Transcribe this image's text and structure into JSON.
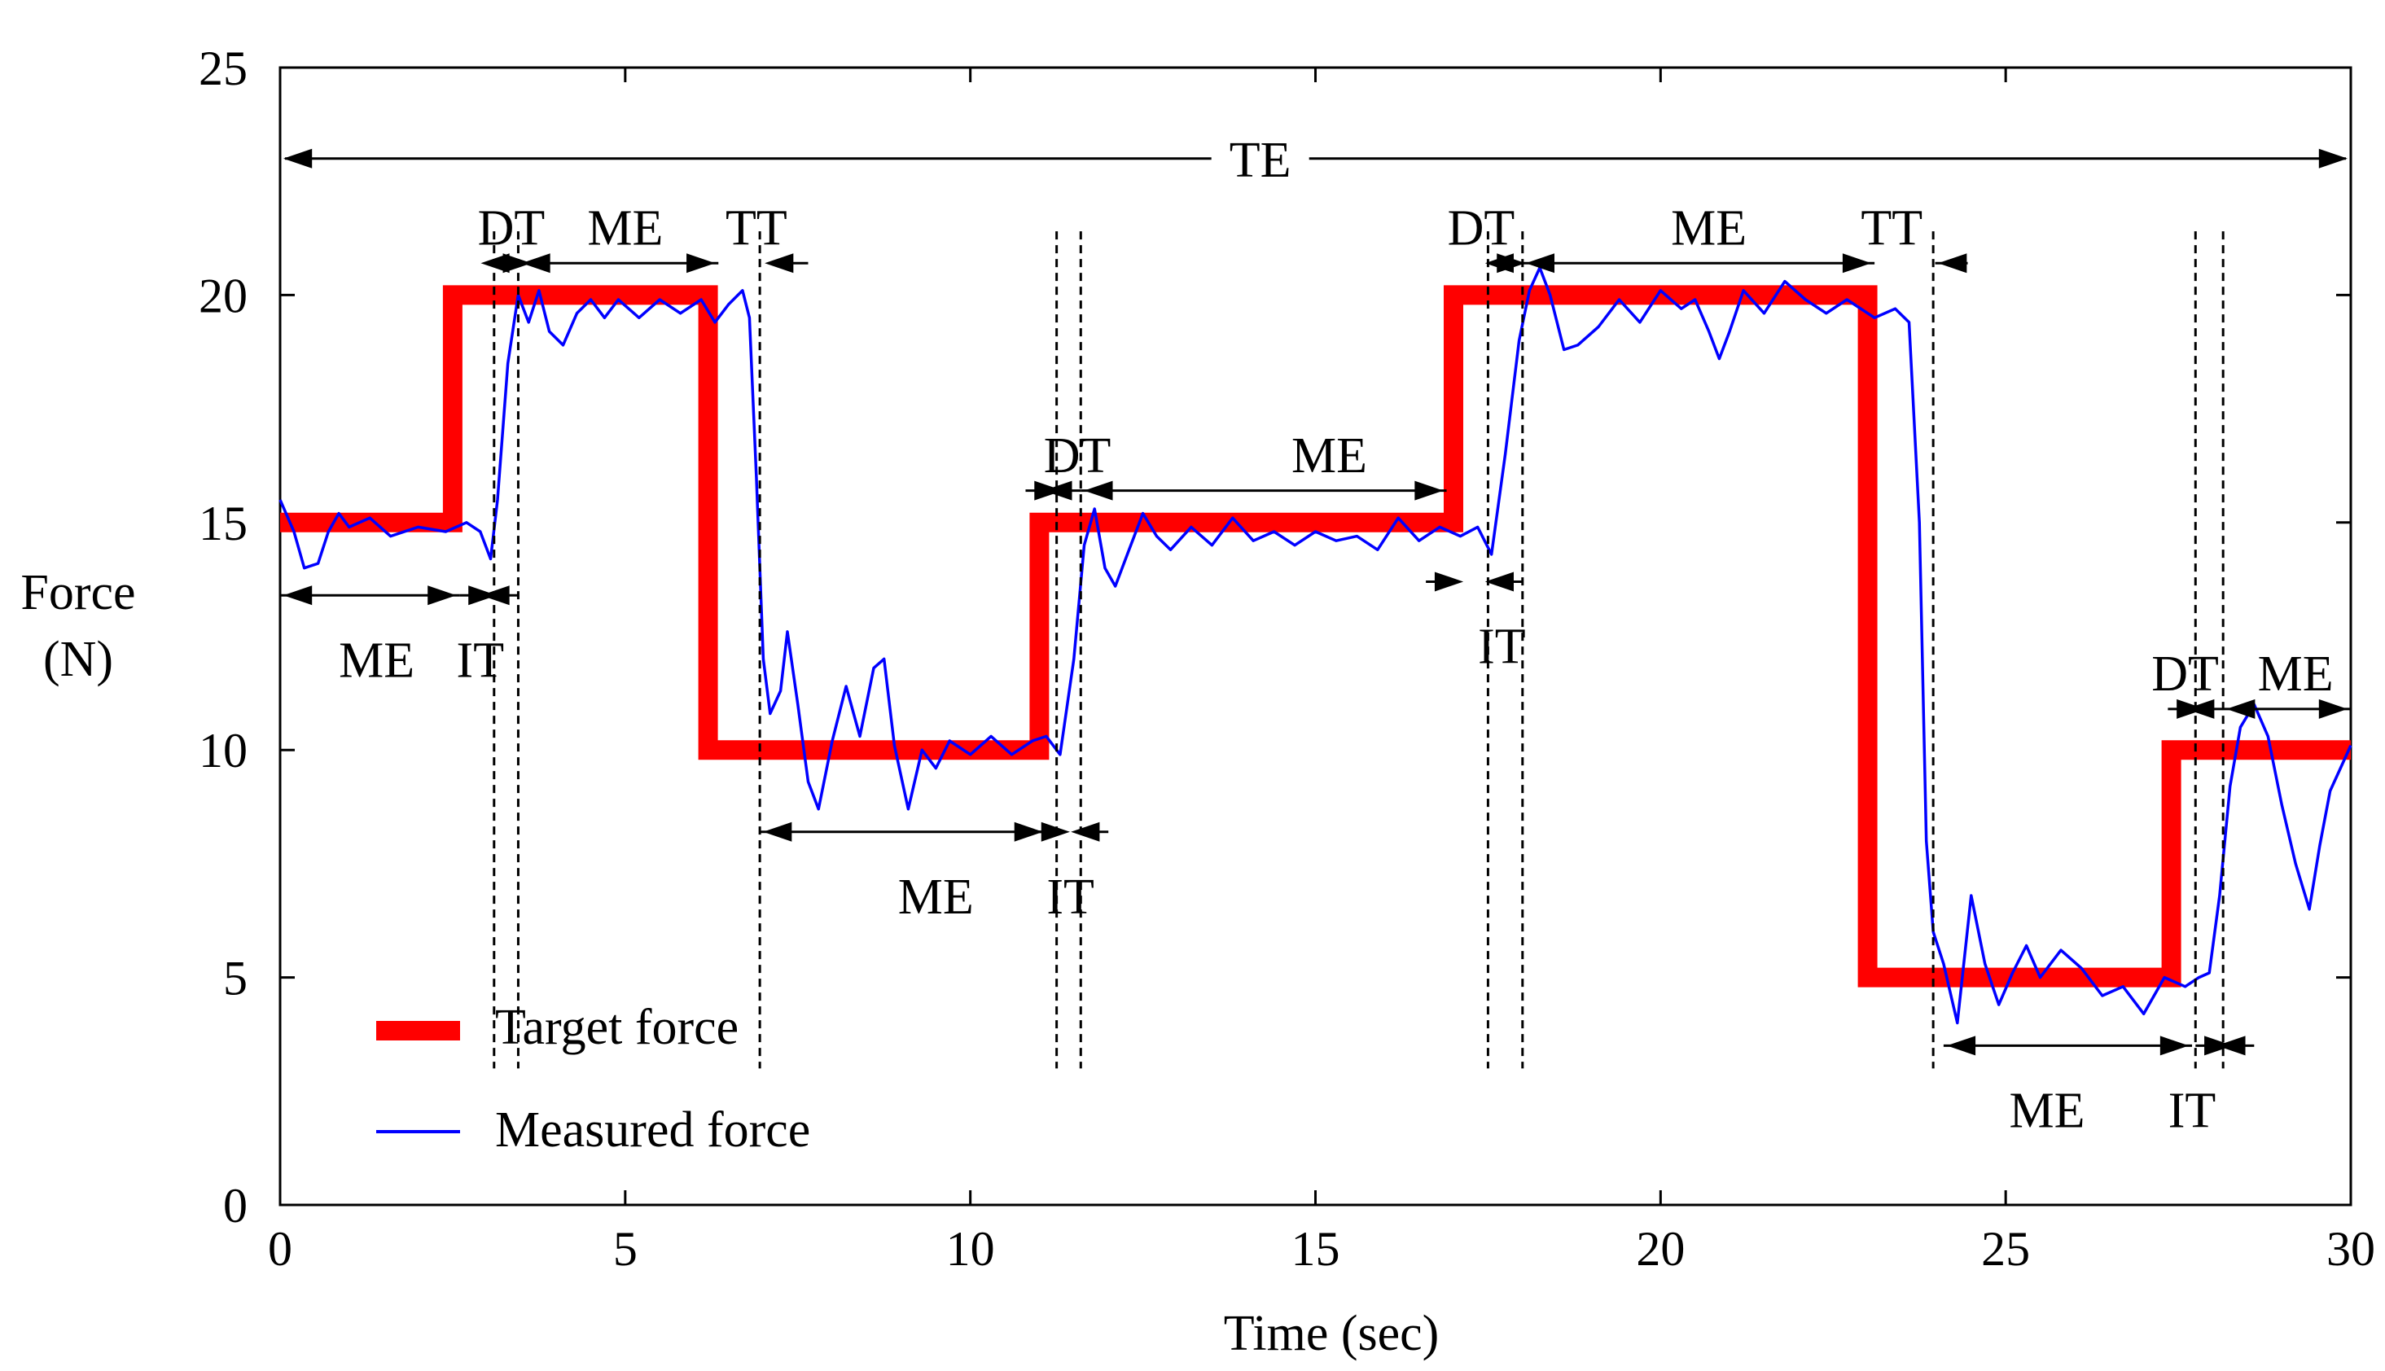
{
  "chart_data": {
    "type": "line",
    "xlabel": "Time (sec)",
    "ylabel_line1": "Force",
    "ylabel_line2": "(N)",
    "xlim": [
      0,
      30
    ],
    "ylim": [
      0,
      25
    ],
    "xticks": [
      0,
      5,
      10,
      15,
      20,
      25,
      30
    ],
    "yticks": [
      0,
      5,
      10,
      15,
      20,
      25
    ],
    "grid": false,
    "legend_position": "bottom-left",
    "series": [
      {
        "name": "Target force",
        "color": "#ff0000",
        "style": "step",
        "points": [
          [
            0,
            15
          ],
          [
            2.5,
            15
          ],
          [
            2.5,
            20
          ],
          [
            6.2,
            20
          ],
          [
            6.2,
            10
          ],
          [
            11,
            10
          ],
          [
            11,
            15
          ],
          [
            17,
            15
          ],
          [
            17,
            20
          ],
          [
            23,
            20
          ],
          [
            23,
            5
          ],
          [
            27.4,
            5
          ],
          [
            27.4,
            10
          ],
          [
            30,
            10
          ]
        ]
      },
      {
        "name": "Measured force",
        "color": "#0000ff",
        "style": "line",
        "points": [
          [
            0,
            15.5
          ],
          [
            0.2,
            14.8
          ],
          [
            0.35,
            14.0
          ],
          [
            0.55,
            14.1
          ],
          [
            0.7,
            14.8
          ],
          [
            0.85,
            15.2
          ],
          [
            1.0,
            14.9
          ],
          [
            1.3,
            15.1
          ],
          [
            1.6,
            14.7
          ],
          [
            2.0,
            14.9
          ],
          [
            2.4,
            14.8
          ],
          [
            2.7,
            15.0
          ],
          [
            2.9,
            14.8
          ],
          [
            3.05,
            14.2
          ],
          [
            3.15,
            15.5
          ],
          [
            3.3,
            18.5
          ],
          [
            3.45,
            20.0
          ],
          [
            3.6,
            19.4
          ],
          [
            3.75,
            20.1
          ],
          [
            3.9,
            19.2
          ],
          [
            4.1,
            18.9
          ],
          [
            4.3,
            19.6
          ],
          [
            4.5,
            19.9
          ],
          [
            4.7,
            19.5
          ],
          [
            4.9,
            19.9
          ],
          [
            5.2,
            19.5
          ],
          [
            5.5,
            19.9
          ],
          [
            5.8,
            19.6
          ],
          [
            6.1,
            19.9
          ],
          [
            6.3,
            19.4
          ],
          [
            6.5,
            19.8
          ],
          [
            6.7,
            20.1
          ],
          [
            6.8,
            19.5
          ],
          [
            6.9,
            16.0
          ],
          [
            7.0,
            12.0
          ],
          [
            7.1,
            10.8
          ],
          [
            7.25,
            11.3
          ],
          [
            7.35,
            12.6
          ],
          [
            7.5,
            11.0
          ],
          [
            7.65,
            9.3
          ],
          [
            7.8,
            8.7
          ],
          [
            8.0,
            10.2
          ],
          [
            8.2,
            11.4
          ],
          [
            8.4,
            10.3
          ],
          [
            8.6,
            11.8
          ],
          [
            8.75,
            12.0
          ],
          [
            8.9,
            10.1
          ],
          [
            9.1,
            8.7
          ],
          [
            9.3,
            10.0
          ],
          [
            9.5,
            9.6
          ],
          [
            9.7,
            10.2
          ],
          [
            10.0,
            9.9
          ],
          [
            10.3,
            10.3
          ],
          [
            10.6,
            9.9
          ],
          [
            10.9,
            10.2
          ],
          [
            11.1,
            10.3
          ],
          [
            11.3,
            9.9
          ],
          [
            11.5,
            12.0
          ],
          [
            11.65,
            14.5
          ],
          [
            11.8,
            15.3
          ],
          [
            11.95,
            14.0
          ],
          [
            12.1,
            13.6
          ],
          [
            12.3,
            14.4
          ],
          [
            12.5,
            15.2
          ],
          [
            12.7,
            14.7
          ],
          [
            12.9,
            14.4
          ],
          [
            13.2,
            14.9
          ],
          [
            13.5,
            14.5
          ],
          [
            13.8,
            15.1
          ],
          [
            14.1,
            14.6
          ],
          [
            14.4,
            14.8
          ],
          [
            14.7,
            14.5
          ],
          [
            15.0,
            14.8
          ],
          [
            15.3,
            14.6
          ],
          [
            15.6,
            14.7
          ],
          [
            15.9,
            14.4
          ],
          [
            16.2,
            15.1
          ],
          [
            16.5,
            14.6
          ],
          [
            16.8,
            14.9
          ],
          [
            17.1,
            14.7
          ],
          [
            17.35,
            14.9
          ],
          [
            17.55,
            14.3
          ],
          [
            17.75,
            16.5
          ],
          [
            17.95,
            19.0
          ],
          [
            18.1,
            20.1
          ],
          [
            18.25,
            20.6
          ],
          [
            18.4,
            20.0
          ],
          [
            18.6,
            18.8
          ],
          [
            18.8,
            18.9
          ],
          [
            19.1,
            19.3
          ],
          [
            19.4,
            19.9
          ],
          [
            19.7,
            19.4
          ],
          [
            20.0,
            20.1
          ],
          [
            20.3,
            19.7
          ],
          [
            20.5,
            19.9
          ],
          [
            20.7,
            19.2
          ],
          [
            20.85,
            18.6
          ],
          [
            21.0,
            19.2
          ],
          [
            21.2,
            20.1
          ],
          [
            21.5,
            19.6
          ],
          [
            21.8,
            20.3
          ],
          [
            22.1,
            19.9
          ],
          [
            22.4,
            19.6
          ],
          [
            22.7,
            19.9
          ],
          [
            23.1,
            19.5
          ],
          [
            23.4,
            19.7
          ],
          [
            23.6,
            19.4
          ],
          [
            23.75,
            15.0
          ],
          [
            23.85,
            8.0
          ],
          [
            23.95,
            6.0
          ],
          [
            24.1,
            5.3
          ],
          [
            24.3,
            4.0
          ],
          [
            24.5,
            6.8
          ],
          [
            24.7,
            5.3
          ],
          [
            24.9,
            4.4
          ],
          [
            25.1,
            5.1
          ],
          [
            25.3,
            5.7
          ],
          [
            25.5,
            5.0
          ],
          [
            25.8,
            5.6
          ],
          [
            26.1,
            5.2
          ],
          [
            26.4,
            4.6
          ],
          [
            26.7,
            4.8
          ],
          [
            27.0,
            4.2
          ],
          [
            27.3,
            5.0
          ],
          [
            27.6,
            4.8
          ],
          [
            27.8,
            5.0
          ],
          [
            27.95,
            5.1
          ],
          [
            28.1,
            6.8
          ],
          [
            28.25,
            9.2
          ],
          [
            28.4,
            10.5
          ],
          [
            28.6,
            11.0
          ],
          [
            28.8,
            10.3
          ],
          [
            29.0,
            8.8
          ],
          [
            29.2,
            7.5
          ],
          [
            29.4,
            6.5
          ],
          [
            29.55,
            7.9
          ],
          [
            29.7,
            9.1
          ],
          [
            29.85,
            9.6
          ],
          [
            30.0,
            10.1
          ]
        ]
      }
    ],
    "vlines": [
      3.1,
      3.45,
      6.95,
      11.25,
      11.6,
      17.5,
      18.0,
      23.95,
      27.75,
      28.15
    ],
    "annotations": [
      {
        "text": "TE",
        "x1": 0,
        "x2": 30,
        "y": 23.0,
        "style": "span",
        "label_x": 14.2,
        "label_y": 23.0
      },
      {
        "text": "DT",
        "x1": 3.1,
        "x2": 3.45,
        "y": 20.7,
        "style": "inward",
        "label_x": 3.35,
        "label_y": 21.5
      },
      {
        "text": "ME",
        "x1": 3.45,
        "x2": 6.35,
        "y": 20.7,
        "style": "span",
        "label_x": 5.0,
        "label_y": 21.5
      },
      {
        "text": "TT",
        "x1": 6.95,
        "x2": 7.65,
        "y": 20.7,
        "style": "left-inward",
        "label_x": 6.9,
        "label_y": 21.5
      },
      {
        "text": "ME",
        "x1": 0,
        "x2": 2.6,
        "y": 13.4,
        "style": "span",
        "label_x": 1.4,
        "label_y": 12.0
      },
      {
        "text": "IT",
        "x1": 2.6,
        "x2": 3.45,
        "y": 13.4,
        "style": "inward",
        "label_x": 2.9,
        "label_y": 12.0
      },
      {
        "text": "DT",
        "x1": 10.8,
        "x2": 11.6,
        "y": 15.7,
        "style": "inward",
        "label_x": 11.55,
        "label_y": 16.5
      },
      {
        "text": "ME",
        "x1": 11.6,
        "x2": 16.9,
        "y": 15.7,
        "style": "span",
        "label_x": 15.2,
        "label_y": 16.5
      },
      {
        "text": "ME",
        "x1": 6.95,
        "x2": 11.1,
        "y": 8.2,
        "style": "span",
        "label_x": 9.5,
        "label_y": 6.8
      },
      {
        "text": "IT",
        "x1": 10.9,
        "x2": 12.0,
        "y": 8.2,
        "style": "inward",
        "label_x": 11.45,
        "label_y": 6.8
      },
      {
        "text": "IT",
        "x1": 16.6,
        "x2": 18.0,
        "y": 13.7,
        "style": "inward",
        "label_x": 17.7,
        "label_y": 12.3
      },
      {
        "text": "DT",
        "x1": 17.5,
        "x2": 18.0,
        "y": 20.7,
        "style": "inward",
        "label_x": 17.4,
        "label_y": 21.5
      },
      {
        "text": "ME",
        "x1": 18.0,
        "x2": 23.1,
        "y": 20.7,
        "style": "span",
        "label_x": 20.7,
        "label_y": 21.5
      },
      {
        "text": "TT",
        "x1": 23.95,
        "x2": 24.45,
        "y": 20.7,
        "style": "left-inward",
        "label_x": 23.35,
        "label_y": 21.5
      },
      {
        "text": "ME",
        "x1": 24.1,
        "x2": 27.7,
        "y": 3.5,
        "style": "span",
        "label_x": 25.6,
        "label_y": 2.1
      },
      {
        "text": "IT",
        "x1": 27.75,
        "x2": 28.6,
        "y": 3.5,
        "style": "inward",
        "label_x": 27.7,
        "label_y": 2.1
      },
      {
        "text": "DT",
        "x1": 27.35,
        "x2": 28.15,
        "y": 10.9,
        "style": "inward",
        "label_x": 27.6,
        "label_y": 11.7
      },
      {
        "text": "ME",
        "x1": 28.15,
        "x2": 30,
        "y": 10.9,
        "style": "span",
        "label_x": 29.2,
        "label_y": 11.7
      }
    ]
  },
  "legend": [
    {
      "label": "Target force",
      "color": "#ff0000"
    },
    {
      "label": "Measured force",
      "color": "#0000ff"
    }
  ]
}
